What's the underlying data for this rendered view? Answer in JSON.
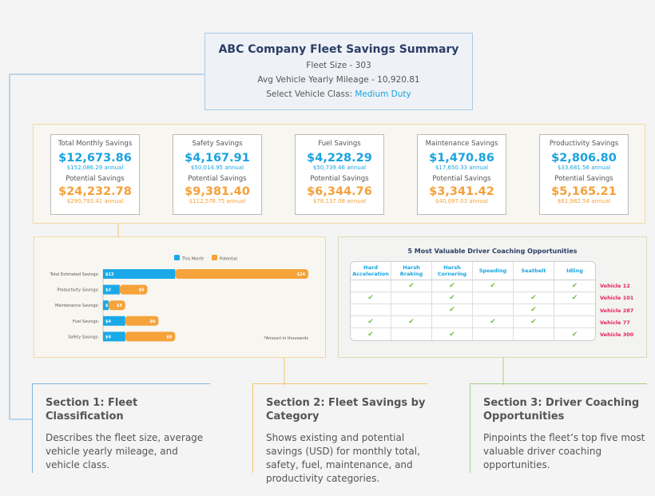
{
  "header": {
    "title": "ABC Company Fleet Savings Summary",
    "fleet_size": "Fleet Size - 303",
    "mileage": "Avg Vehicle Yearly Mileage - 10,920.81",
    "class_label": "Select Vehicle Class:",
    "class_value": "Medium Duty"
  },
  "cards": [
    {
      "title": "Total Monthly Savings",
      "value": "$12,673.86",
      "annual": "$152,086.29 annual",
      "potential_label": "Potential Savings",
      "potential": "$24,232.78",
      "potential_annual": "$290,793.41 annual"
    },
    {
      "title": "Safety Savings",
      "value": "$4,167.91",
      "annual": "$50,014.95 annual",
      "potential_label": "Potential Savings",
      "potential": "$9,381.40",
      "potential_annual": "$112,576.75 annual"
    },
    {
      "title": "Fuel Savings",
      "value": "$4,228.29",
      "annual": "$50,739.46 annual",
      "potential_label": "Potential Savings",
      "potential": "$6,344.76",
      "potential_annual": "$76,137.08 annual"
    },
    {
      "title": "Maintenance Savings",
      "value": "$1,470.86",
      "annual": "$17,650.33 annual",
      "potential_label": "Potential Savings",
      "potential": "$3,341.42",
      "potential_annual": "$40,097.03 annual"
    },
    {
      "title": "Productivity Savings",
      "value": "$2,806.80",
      "annual": "$33,681.56 annual",
      "potential_label": "Potential Savings",
      "potential": "$5,165.21",
      "potential_annual": "$61,982.54 annual"
    }
  ],
  "chart_data": {
    "type": "bar",
    "orientation": "horizontal",
    "stacked": true,
    "categories": [
      "Total Estimated Savings:",
      "Productivity Savings:",
      "Maintenance Savings:",
      "Fuel Savings:",
      "Safety Savings:"
    ],
    "series": [
      {
        "name": "This Month",
        "color": "#1aa9e8",
        "values": [
          13,
          3,
          1,
          4,
          4
        ]
      },
      {
        "name": "Potential",
        "color": "#f5a33a",
        "values": [
          24,
          5,
          3,
          6,
          9
        ]
      }
    ],
    "value_prefix": "$",
    "note": "*Amount in thousands",
    "legend": "top",
    "xlim": [
      0,
      37
    ]
  },
  "coaching": {
    "title": "5 Most Valuable Driver Coaching Opportunities",
    "columns": [
      "Hard Acceleration",
      "Harsh Braking",
      "Harsh Cornering",
      "Speeding",
      "Seatbelt",
      "Idling"
    ],
    "check_icon": "check-icon",
    "check_glyph": "✔",
    "rows": [
      {
        "vehicle": "Vehicle 12",
        "checks": [
          false,
          true,
          true,
          true,
          false,
          true
        ]
      },
      {
        "vehicle": "Vehicle 101",
        "checks": [
          true,
          false,
          true,
          false,
          true,
          true
        ]
      },
      {
        "vehicle": "Vehicle 287",
        "checks": [
          false,
          false,
          true,
          false,
          true,
          false
        ]
      },
      {
        "vehicle": "Vehicle 77",
        "checks": [
          true,
          true,
          false,
          true,
          true,
          false
        ]
      },
      {
        "vehicle": "Vehicle 300",
        "checks": [
          true,
          false,
          true,
          false,
          false,
          true
        ]
      }
    ]
  },
  "sections": [
    {
      "title": "Section 1: Fleet Classification",
      "body": "Describes the fleet size, average vehicle yearly mileage, and vehicle class.",
      "color": "#7fb3e0"
    },
    {
      "title": "Section 2: Fleet Savings by Category",
      "body": "Shows existing and potential savings (USD) for monthly total, safety, fuel, maintenance, and productivity categories.",
      "color": "#f2c66e"
    },
    {
      "title": "Section 3: Driver Coaching Opportunities",
      "body": "Pinpoints the fleet’s top five most valuable driver coaching opportunities.",
      "color": "#a9cc8a"
    }
  ]
}
